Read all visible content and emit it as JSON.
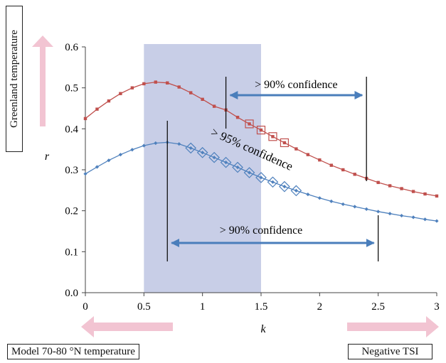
{
  "labels": {
    "greenland": "Greenland temperature",
    "model": "Model 70-80 °N temperature",
    "negative_tsi": "Negative TSI"
  },
  "colors": {
    "red_series": "#c0504d",
    "blue_series": "#4f81bd",
    "shade": "#c5cbe6",
    "pink_arrow": "#f2c4d2",
    "blue_arrow": "#4a7ebb"
  },
  "chart_data": {
    "type": "line",
    "xlabel": "k",
    "ylabel": "r",
    "xlim": [
      0,
      3
    ],
    "ylim": [
      0,
      0.6
    ],
    "x_ticks": [
      "0",
      "0.5",
      "1",
      "1.5",
      "2",
      "2.5",
      "3"
    ],
    "y_ticks": [
      "0.0",
      "0.1",
      "0.2",
      "0.3",
      "0.4",
      "0.5",
      "0.6"
    ],
    "grid": false,
    "shaded_region": {
      "x": [
        0.5,
        1.5
      ]
    },
    "x": [
      0,
      0.1,
      0.2,
      0.3,
      0.4,
      0.5,
      0.6,
      0.7,
      0.8,
      0.9,
      1.0,
      1.1,
      1.2,
      1.3,
      1.4,
      1.5,
      1.6,
      1.7,
      1.8,
      1.9,
      2.0,
      2.1,
      2.2,
      2.3,
      2.4,
      2.5,
      2.6,
      2.7,
      2.8,
      2.9,
      3.0
    ],
    "series": [
      {
        "color": "#c0504d",
        "marker": "square",
        "values": [
          0.425,
          0.448,
          0.468,
          0.486,
          0.5,
          0.51,
          0.514,
          0.512,
          0.502,
          0.488,
          0.472,
          0.455,
          0.446,
          0.428,
          0.412,
          0.397,
          0.381,
          0.366,
          0.351,
          0.337,
          0.324,
          0.311,
          0.3,
          0.289,
          0.279,
          0.269,
          0.261,
          0.254,
          0.247,
          0.241,
          0.236
        ],
        "highlight_x": [
          1.4,
          1.5,
          1.6,
          1.7
        ]
      },
      {
        "color": "#4f81bd",
        "marker": "diamond",
        "values": [
          0.29,
          0.307,
          0.323,
          0.337,
          0.349,
          0.359,
          0.365,
          0.367,
          0.363,
          0.353,
          0.342,
          0.33,
          0.318,
          0.306,
          0.293,
          0.281,
          0.27,
          0.259,
          0.249,
          0.24,
          0.231,
          0.223,
          0.216,
          0.21,
          0.204,
          0.198,
          0.193,
          0.188,
          0.184,
          0.179,
          0.175
        ],
        "highlight_x": [
          0.9,
          1.0,
          1.1,
          1.2,
          1.3,
          1.4,
          1.5,
          1.6,
          1.7,
          1.8
        ]
      }
    ],
    "annotations": [
      {
        "text": "> 90% confidence",
        "series": 0,
        "x_from": 1.2,
        "x_to": 2.4
      },
      {
        "text": "> 95% confidence",
        "rotated": true
      },
      {
        "text": "> 90% confidence",
        "series": 1,
        "x_from": 0.7,
        "x_to": 2.5
      }
    ]
  }
}
